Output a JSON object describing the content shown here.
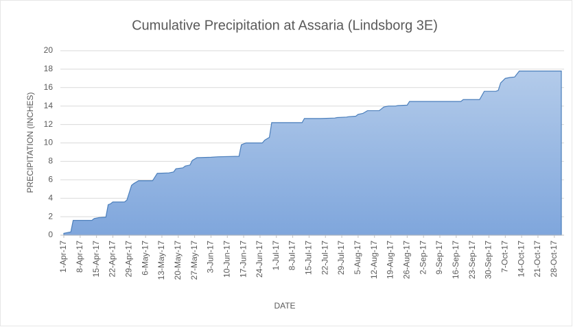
{
  "chart_data": {
    "type": "area",
    "title": "Cumulative Precipitation at Assaria (Lindsborg 3E)",
    "x_label": "DATE",
    "y_label": "PRECIPITATION (INCHES)",
    "x": [
      "2017-04-01",
      "2017-04-03",
      "2017-04-04",
      "2017-04-05",
      "2017-04-13",
      "2017-04-14",
      "2017-04-16",
      "2017-04-19",
      "2017-04-20",
      "2017-04-21",
      "2017-04-22",
      "2017-04-27",
      "2017-04-28",
      "2017-04-30",
      "2017-05-01",
      "2017-05-03",
      "2017-05-09",
      "2017-05-11",
      "2017-05-16",
      "2017-05-18",
      "2017-05-19",
      "2017-05-22",
      "2017-05-23",
      "2017-05-25",
      "2017-05-26",
      "2017-05-28",
      "2017-06-03",
      "2017-06-06",
      "2017-06-15",
      "2017-06-16",
      "2017-06-17",
      "2017-06-18",
      "2017-06-25",
      "2017-06-26",
      "2017-06-28",
      "2017-06-29",
      "2017-07-12",
      "2017-07-13",
      "2017-07-20",
      "2017-07-26",
      "2017-07-27",
      "2017-07-31",
      "2017-08-01",
      "2017-08-04",
      "2017-08-05",
      "2017-08-07",
      "2017-08-09",
      "2017-08-14",
      "2017-08-16",
      "2017-08-18",
      "2017-08-21",
      "2017-08-22",
      "2017-08-26",
      "2017-08-27",
      "2017-09-18",
      "2017-09-19",
      "2017-09-26",
      "2017-09-28",
      "2017-10-03",
      "2017-10-04",
      "2017-10-05",
      "2017-10-07",
      "2017-10-09",
      "2017-10-11",
      "2017-10-13",
      "2017-10-31"
    ],
    "series": [
      {
        "name": "Cumulative Precipitation",
        "color": "#4a7ebb",
        "values": [
          0.2,
          0.3,
          0.35,
          1.6,
          1.6,
          1.8,
          1.9,
          1.95,
          3.3,
          3.4,
          3.6,
          3.6,
          3.8,
          5.4,
          5.6,
          5.9,
          5.9,
          6.7,
          6.75,
          6.85,
          7.2,
          7.3,
          7.5,
          7.6,
          8.1,
          8.4,
          8.45,
          8.5,
          8.55,
          9.8,
          9.9,
          10.0,
          10.0,
          10.3,
          10.6,
          12.2,
          12.2,
          12.65,
          12.65,
          12.7,
          12.75,
          12.8,
          12.85,
          12.9,
          13.1,
          13.2,
          13.5,
          13.5,
          13.9,
          14.0,
          14.0,
          14.05,
          14.1,
          14.5,
          14.5,
          14.7,
          14.7,
          15.6,
          15.6,
          15.7,
          16.5,
          17.0,
          17.1,
          17.15,
          17.8,
          17.8
        ]
      }
    ],
    "xlim": [
      "2017-04-01",
      "2017-10-31"
    ],
    "xticks": [
      {
        "value": "2017-04-01",
        "label": "1-Apr-17"
      },
      {
        "value": "2017-04-08",
        "label": "8-Apr-17"
      },
      {
        "value": "2017-04-15",
        "label": "15-Apr-17"
      },
      {
        "value": "2017-04-22",
        "label": "22-Apr-17"
      },
      {
        "value": "2017-04-29",
        "label": "29-Apr-17"
      },
      {
        "value": "2017-05-06",
        "label": "6-May-17"
      },
      {
        "value": "2017-05-13",
        "label": "13-May-17"
      },
      {
        "value": "2017-05-20",
        "label": "20-May-17"
      },
      {
        "value": "2017-05-27",
        "label": "27-May-17"
      },
      {
        "value": "2017-06-03",
        "label": "3-Jun-17"
      },
      {
        "value": "2017-06-10",
        "label": "10-Jun-17"
      },
      {
        "value": "2017-06-17",
        "label": "17-Jun-17"
      },
      {
        "value": "2017-06-24",
        "label": "24-Jun-17"
      },
      {
        "value": "2017-07-01",
        "label": "1-Jul-17"
      },
      {
        "value": "2017-07-08",
        "label": "8-Jul-17"
      },
      {
        "value": "2017-07-15",
        "label": "15-Jul-17"
      },
      {
        "value": "2017-07-22",
        "label": "22-Jul-17"
      },
      {
        "value": "2017-07-29",
        "label": "29-Jul-17"
      },
      {
        "value": "2017-08-05",
        "label": "5-Aug-17"
      },
      {
        "value": "2017-08-12",
        "label": "12-Aug-17"
      },
      {
        "value": "2017-08-19",
        "label": "19-Aug-17"
      },
      {
        "value": "2017-08-26",
        "label": "26-Aug-17"
      },
      {
        "value": "2017-09-02",
        "label": "2-Sep-17"
      },
      {
        "value": "2017-09-09",
        "label": "9-Sep-17"
      },
      {
        "value": "2017-09-16",
        "label": "16-Sep-17"
      },
      {
        "value": "2017-09-23",
        "label": "23-Sep-17"
      },
      {
        "value": "2017-09-30",
        "label": "30-Sep-17"
      },
      {
        "value": "2017-10-07",
        "label": "7-Oct-17"
      },
      {
        "value": "2017-10-14",
        "label": "14-Oct-17"
      },
      {
        "value": "2017-10-21",
        "label": "21-Oct-17"
      },
      {
        "value": "2017-10-28",
        "label": "28-Oct-17"
      }
    ],
    "ylim": [
      0,
      20
    ],
    "yticks": [
      0,
      2,
      4,
      6,
      8,
      10,
      12,
      14,
      16,
      18,
      20
    ],
    "grid": true
  }
}
